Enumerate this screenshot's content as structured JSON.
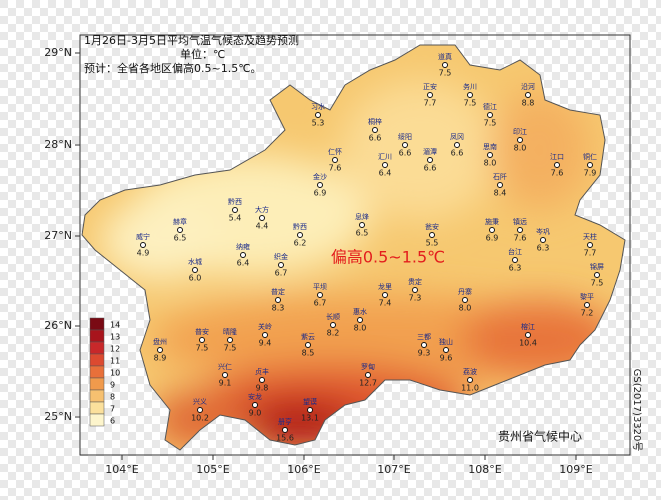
{
  "header": {
    "title": "1月26日-3月5日平均气温气候态及趋势预测",
    "unit": "单位：℃",
    "forecast": "预计：全省各地区偏高0.5~1.5℃。"
  },
  "highlight": "偏高0.5~1.5℃",
  "credit": "贵州省气候中心",
  "map_number": "GS(2017)3320号",
  "lat_ticks": [
    "29°N",
    "28°N",
    "27°N",
    "26°N",
    "25°N"
  ],
  "lon_ticks": [
    "104°E",
    "105°E",
    "106°E",
    "107°E",
    "108°E",
    "109°E"
  ],
  "legend": {
    "values": [
      "14",
      "13",
      "12",
      "11",
      "10",
      "9",
      "8",
      "7",
      "6"
    ]
  },
  "stations": [
    {
      "name": "道真",
      "value": "7.5"
    },
    {
      "name": "正安",
      "value": "7.7"
    },
    {
      "name": "务川",
      "value": "7.5"
    },
    {
      "name": "沿河",
      "value": "8.8"
    },
    {
      "name": "习水",
      "value": "5.3"
    },
    {
      "name": "德江",
      "value": "7.5"
    },
    {
      "name": "桐梓",
      "value": "6.6"
    },
    {
      "name": "绥阳",
      "value": "6.6"
    },
    {
      "name": "凤冈",
      "value": "6.6"
    },
    {
      "name": "印江",
      "value": "8.0"
    },
    {
      "name": "仁怀",
      "value": "7.6"
    },
    {
      "name": "汇川",
      "value": "6.4"
    },
    {
      "name": "湄潭",
      "value": "6.6"
    },
    {
      "name": "思南",
      "value": "8.0"
    },
    {
      "name": "江口",
      "value": "7.6"
    },
    {
      "name": "铜仁",
      "value": "7.9"
    },
    {
      "name": "金沙",
      "value": "6.9"
    },
    {
      "name": "石阡",
      "value": "8.4"
    },
    {
      "name": "黔西",
      "value": "5.4"
    },
    {
      "name": "大方",
      "value": "4.4"
    },
    {
      "name": "威宁",
      "value": "4.9"
    },
    {
      "name": "赫章",
      "value": "6.5"
    },
    {
      "name": "纳雍",
      "value": "6.4"
    },
    {
      "name": "织金",
      "value": "6.7"
    },
    {
      "name": "黔西",
      "value": "6.2"
    },
    {
      "name": "息烽",
      "value": "6.5"
    },
    {
      "name": "瓮安",
      "value": "5.5"
    },
    {
      "name": "施秉",
      "value": "6.9"
    },
    {
      "name": "镇远",
      "value": "7.6"
    },
    {
      "name": "岑巩",
      "value": "6.3"
    },
    {
      "name": "天柱",
      "value": "7.7"
    },
    {
      "name": "锦屏",
      "value": "7.5"
    },
    {
      "name": "台江",
      "value": "6.3"
    },
    {
      "name": "黎平",
      "value": "7.2"
    },
    {
      "name": "水城",
      "value": "6.0"
    },
    {
      "name": "普定",
      "value": "8.3"
    },
    {
      "name": "平坝",
      "value": "6.7"
    },
    {
      "name": "长顺",
      "value": "8.2"
    },
    {
      "name": "惠水",
      "value": "8.0"
    },
    {
      "name": "龙里",
      "value": "7.4"
    },
    {
      "name": "贵定",
      "value": "7.3"
    },
    {
      "name": "丹寨",
      "value": "8.0"
    },
    {
      "name": "榕江",
      "value": "10.4"
    },
    {
      "name": "三都",
      "value": "9.3"
    },
    {
      "name": "独山",
      "value": "9.6"
    },
    {
      "name": "荔波",
      "value": "11.0"
    },
    {
      "name": "盘州",
      "value": "8.9"
    },
    {
      "name": "普安",
      "value": "7.5"
    },
    {
      "name": "晴隆",
      "value": "7.5"
    },
    {
      "name": "关岭",
      "value": "9.4"
    },
    {
      "name": "紫云",
      "value": "8.5"
    },
    {
      "name": "罗甸",
      "value": "12.7"
    },
    {
      "name": "兴仁",
      "value": "9.1"
    },
    {
      "name": "贞丰",
      "value": "9.8"
    },
    {
      "name": "安龙",
      "value": "9.0"
    },
    {
      "name": "兴义",
      "value": "10.2"
    },
    {
      "name": "望谟",
      "value": "13.1"
    },
    {
      "name": "册亨",
      "value": "15.6"
    }
  ]
}
